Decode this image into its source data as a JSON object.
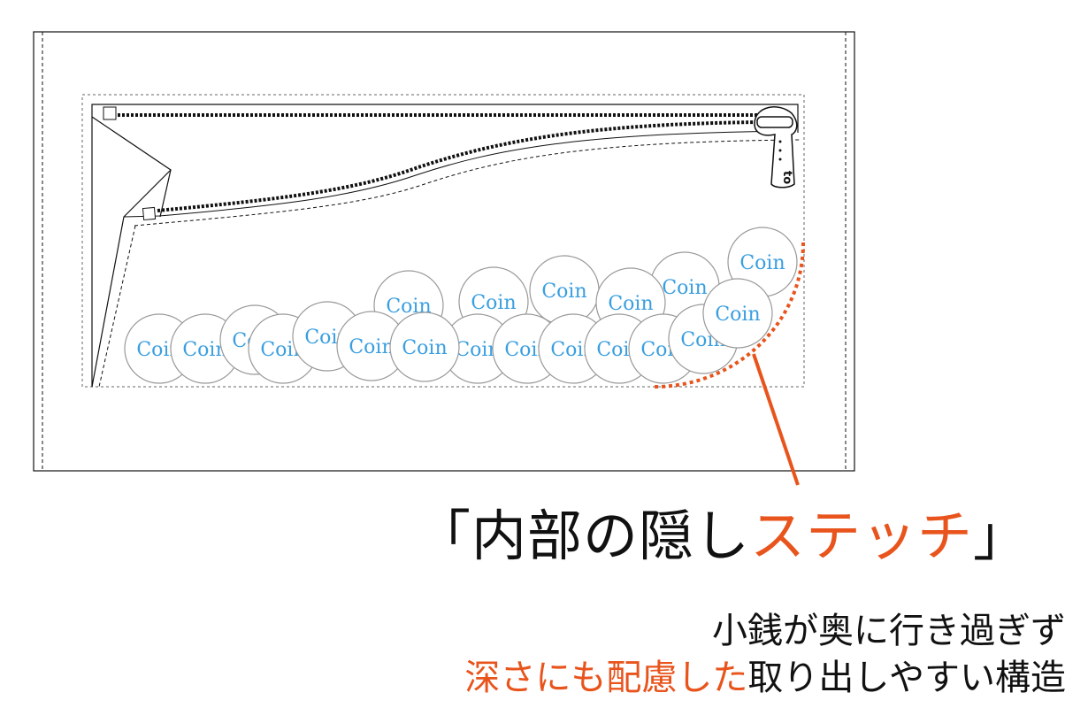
{
  "colors": {
    "accent": "#e8541c",
    "coin_text": "#3a9fe0",
    "line": "#111111"
  },
  "zipper_pull_label": "to",
  "coin_label": "Coin",
  "headline": {
    "open": "「内部の隠し",
    "highlight": "ステッチ",
    "close": "」"
  },
  "caption": {
    "line1": "小銭が奥に行き過ぎず",
    "line2_highlight": "深さにも配慮した",
    "line2_rest": "取り出しやすい構造"
  }
}
